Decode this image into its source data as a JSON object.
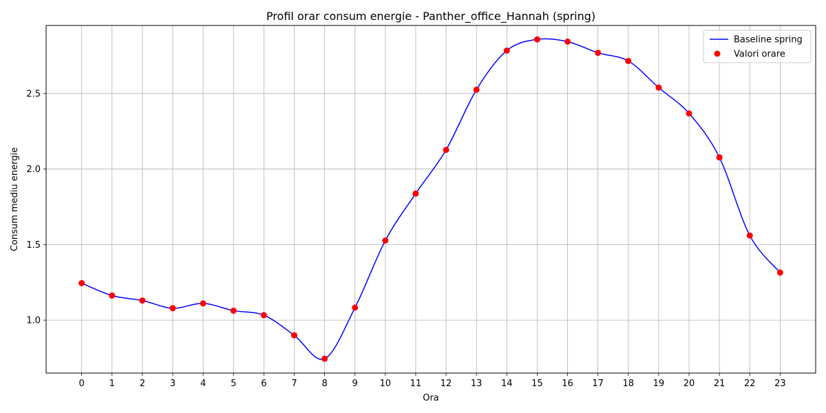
{
  "chart_data": {
    "type": "line",
    "title": "Profil orar consum energie - Panther_office_Hannah (spring)",
    "xlabel": "Ora",
    "ylabel": "Consum mediu energie",
    "x": [
      0,
      1,
      2,
      3,
      4,
      5,
      6,
      7,
      8,
      9,
      10,
      11,
      12,
      13,
      14,
      15,
      16,
      17,
      18,
      19,
      20,
      21,
      22,
      23
    ],
    "x_tick_labels": [
      "0",
      "1",
      "2",
      "3",
      "4",
      "5",
      "6",
      "7",
      "8",
      "9",
      "10",
      "11",
      "12",
      "13",
      "14",
      "15",
      "16",
      "17",
      "18",
      "19",
      "20",
      "21",
      "22",
      "23"
    ],
    "y_ticks": [
      1.0,
      1.5,
      2.0,
      2.5
    ],
    "y_tick_labels": [
      "1.0",
      "1.5",
      "2.0",
      "2.5"
    ],
    "xlim": [
      -1.17,
      24.17
    ],
    "ylim": [
      0.65,
      2.95
    ],
    "grid": true,
    "legend_position": "top-right",
    "series": [
      {
        "name": "Baseline spring",
        "style": "line",
        "color": "#0000ff",
        "values": [
          1.245,
          1.163,
          1.13,
          1.079,
          1.111,
          1.063,
          1.033,
          0.9,
          0.745,
          1.083,
          1.527,
          1.838,
          2.127,
          2.525,
          2.784,
          2.858,
          2.843,
          2.769,
          2.715,
          2.539,
          2.368,
          2.077,
          1.56,
          1.315
        ]
      },
      {
        "name": "Valori orare",
        "style": "scatter",
        "color": "#ff0000",
        "values": [
          1.245,
          1.163,
          1.13,
          1.079,
          1.111,
          1.063,
          1.033,
          0.9,
          0.745,
          1.083,
          1.527,
          1.838,
          2.127,
          2.525,
          2.784,
          2.858,
          2.843,
          2.769,
          2.715,
          2.539,
          2.368,
          2.077,
          1.56,
          1.315
        ]
      }
    ]
  },
  "colors": {
    "grid": "#b0b0b0",
    "axes": "#000000",
    "legend_border": "#cccccc"
  }
}
